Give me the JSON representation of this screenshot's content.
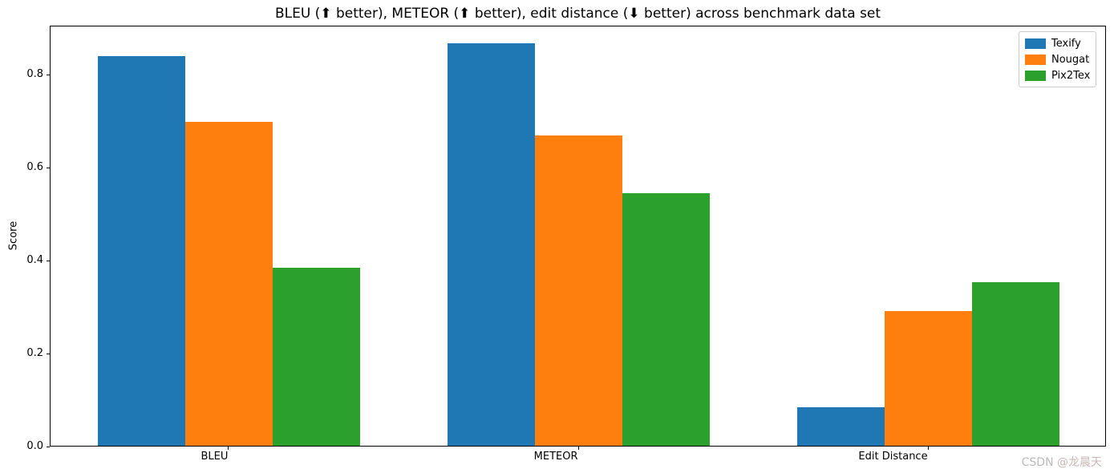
{
  "chart_data": {
    "type": "bar",
    "title": "BLEU (⬆ better), METEOR (⬆ better), edit distance (⬇ better) across benchmark data set",
    "ylabel": "Score",
    "xlabel": "",
    "categories": [
      "BLEU",
      "METEOR",
      "Edit Distance"
    ],
    "series": [
      {
        "name": "Texify",
        "color": "#1f77b4",
        "values": [
          0.8387,
          0.8667,
          0.0825
        ]
      },
      {
        "name": "Nougat",
        "color": "#ff7f0e",
        "values": [
          0.6976,
          0.6675,
          0.2891
        ]
      },
      {
        "name": "Pix2Tex",
        "color": "#2ca02c",
        "values": [
          0.3828,
          0.543,
          0.3519
        ]
      }
    ],
    "yticks": [
      0.0,
      0.2,
      0.4,
      0.6,
      0.8
    ],
    "ylim": [
      0,
      0.906
    ],
    "xlim": [
      -0.51,
      2.51
    ],
    "bar_width": 0.25,
    "grid": false,
    "legend_position": "upper right"
  },
  "watermark": {
    "prefix": "CSDN",
    "author": "@龙晨天"
  }
}
